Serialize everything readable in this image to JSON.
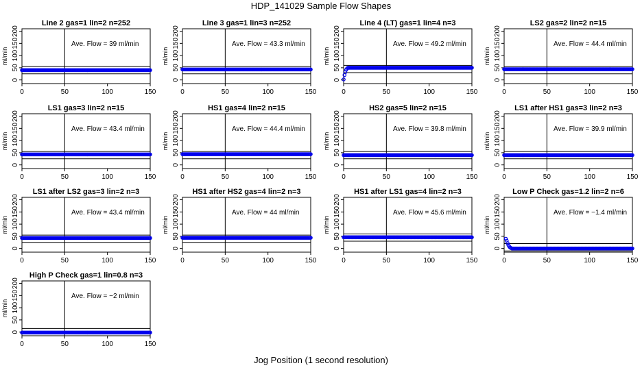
{
  "title": "HDP_141029  Sample Flow Shapes",
  "xlabel": "Jog Position (1 second resolution)",
  "ylabel": "ml/min",
  "avg_prefix": "Ave. Flow = ",
  "avg_suffix": "  ml/min",
  "colors": {
    "points": "#0000ee",
    "axis": "#000000"
  },
  "chart_data": [
    {
      "type": "scatter",
      "title": "Line 2 gas=1 lin=2 n=252",
      "avg": "39",
      "level": 40,
      "xlim": [
        0,
        150
      ],
      "ylim": [
        -15,
        210
      ],
      "xticks": [
        0,
        50,
        100,
        150
      ],
      "yticks": [
        0,
        50,
        100,
        150,
        200
      ],
      "hlines": [
        25,
        55
      ],
      "vline": 50,
      "startup": []
    },
    {
      "type": "scatter",
      "title": "Line 3 gas=1 lin=3 n=252",
      "avg": "43.3",
      "level": 43,
      "xlim": [
        0,
        150
      ],
      "ylim": [
        -15,
        210
      ],
      "xticks": [
        0,
        50,
        100,
        150
      ],
      "yticks": [
        0,
        50,
        100,
        150,
        200
      ],
      "hlines": [
        25,
        55
      ],
      "vline": 50,
      "startup": []
    },
    {
      "type": "scatter",
      "title": "Line 4 (LT) gas=1 lin=4 n=3",
      "avg": "49.2",
      "level": 50,
      "xlim": [
        0,
        150
      ],
      "ylim": [
        -15,
        210
      ],
      "xticks": [
        0,
        50,
        100,
        150
      ],
      "yticks": [
        0,
        50,
        100,
        150,
        200
      ],
      "hlines": [
        30,
        60
      ],
      "vline": 50,
      "startup": [
        [
          0,
          2
        ],
        [
          1,
          20
        ],
        [
          2,
          32
        ],
        [
          3,
          42
        ],
        [
          4,
          47
        ]
      ]
    },
    {
      "type": "scatter",
      "title": "LS2 gas=2 lin=2 n=15",
      "avg": "44.4",
      "level": 44,
      "xlim": [
        0,
        150
      ],
      "ylim": [
        -15,
        210
      ],
      "xticks": [
        0,
        50,
        100,
        150
      ],
      "yticks": [
        0,
        50,
        100,
        150,
        200
      ],
      "hlines": [
        25,
        55
      ],
      "vline": 50,
      "startup": []
    },
    {
      "type": "scatter",
      "title": "LS1 gas=3 lin=2 n=15",
      "avg": "43.4",
      "level": 43,
      "xlim": [
        0,
        150
      ],
      "ylim": [
        -15,
        210
      ],
      "xticks": [
        0,
        50,
        100,
        150
      ],
      "yticks": [
        0,
        50,
        100,
        150,
        200
      ],
      "hlines": [
        25,
        55
      ],
      "vline": 50,
      "startup": []
    },
    {
      "type": "scatter",
      "title": "HS1 gas=4 lin=2 n=15",
      "avg": "44.4",
      "level": 44,
      "xlim": [
        0,
        150
      ],
      "ylim": [
        -15,
        210
      ],
      "xticks": [
        0,
        50,
        100,
        150
      ],
      "yticks": [
        0,
        50,
        100,
        150,
        200
      ],
      "hlines": [
        25,
        55
      ],
      "vline": 50,
      "startup": []
    },
    {
      "type": "scatter",
      "title": "HS2 gas=5 lin=2 n=15",
      "avg": "39.8",
      "level": 40,
      "xlim": [
        0,
        150
      ],
      "ylim": [
        -15,
        210
      ],
      "xticks": [
        0,
        50,
        100,
        150
      ],
      "yticks": [
        0,
        50,
        100,
        150,
        200
      ],
      "hlines": [
        25,
        55
      ],
      "vline": 50,
      "startup": []
    },
    {
      "type": "scatter",
      "title": "LS1 after HS1 gas=3 lin=2 n=3",
      "avg": "39.9",
      "level": 40,
      "xlim": [
        0,
        150
      ],
      "ylim": [
        -15,
        210
      ],
      "xticks": [
        0,
        50,
        100,
        150
      ],
      "yticks": [
        0,
        50,
        100,
        150,
        200
      ],
      "hlines": [
        25,
        55
      ],
      "vline": 50,
      "startup": []
    },
    {
      "type": "scatter",
      "title": "LS1 after LS2 gas=3 lin=2 n=3",
      "avg": "43.4",
      "level": 43,
      "xlim": [
        0,
        150
      ],
      "ylim": [
        -15,
        210
      ],
      "xticks": [
        0,
        50,
        100,
        150
      ],
      "yticks": [
        0,
        50,
        100,
        150,
        200
      ],
      "hlines": [
        25,
        55
      ],
      "vline": 50,
      "startup": []
    },
    {
      "type": "scatter",
      "title": "HS1 after HS2 gas=4 lin=2 n=3",
      "avg": "44",
      "level": 44,
      "xlim": [
        0,
        150
      ],
      "ylim": [
        -15,
        210
      ],
      "xticks": [
        0,
        50,
        100,
        150
      ],
      "yticks": [
        0,
        50,
        100,
        150,
        200
      ],
      "hlines": [
        25,
        55
      ],
      "vline": 50,
      "startup": []
    },
    {
      "type": "scatter",
      "title": "HS1 after LS1 gas=4 lin=2 n=3",
      "avg": "45.6",
      "level": 46,
      "xlim": [
        0,
        150
      ],
      "ylim": [
        -15,
        210
      ],
      "xticks": [
        0,
        50,
        100,
        150
      ],
      "yticks": [
        0,
        50,
        100,
        150,
        200
      ],
      "hlines": [
        30,
        60
      ],
      "vline": 50,
      "startup": []
    },
    {
      "type": "scatter",
      "title": "Low P Check gas=1.2 lin=2 n=6",
      "avg": "−1.4",
      "level": 0,
      "xlim": [
        0,
        150
      ],
      "ylim": [
        -15,
        210
      ],
      "xticks": [
        0,
        50,
        100,
        150
      ],
      "yticks": [
        0,
        50,
        100,
        150,
        200
      ],
      "hlines": [
        -10,
        20
      ],
      "vline": 50,
      "startup": [
        [
          2,
          40
        ],
        [
          3,
          32
        ],
        [
          4,
          22
        ],
        [
          5,
          14
        ],
        [
          6,
          8
        ],
        [
          7,
          4
        ],
        [
          8,
          2
        ]
      ]
    },
    {
      "type": "scatter",
      "title": "High P Check gas=1 lin=0.8 n=3",
      "avg": "−2",
      "level": -2,
      "xlim": [
        0,
        150
      ],
      "ylim": [
        -15,
        210
      ],
      "xticks": [
        0,
        50,
        100,
        150
      ],
      "yticks": [
        0,
        50,
        100,
        150,
        200
      ],
      "hlines": [
        -15,
        15
      ],
      "vline": 50,
      "startup": []
    }
  ]
}
